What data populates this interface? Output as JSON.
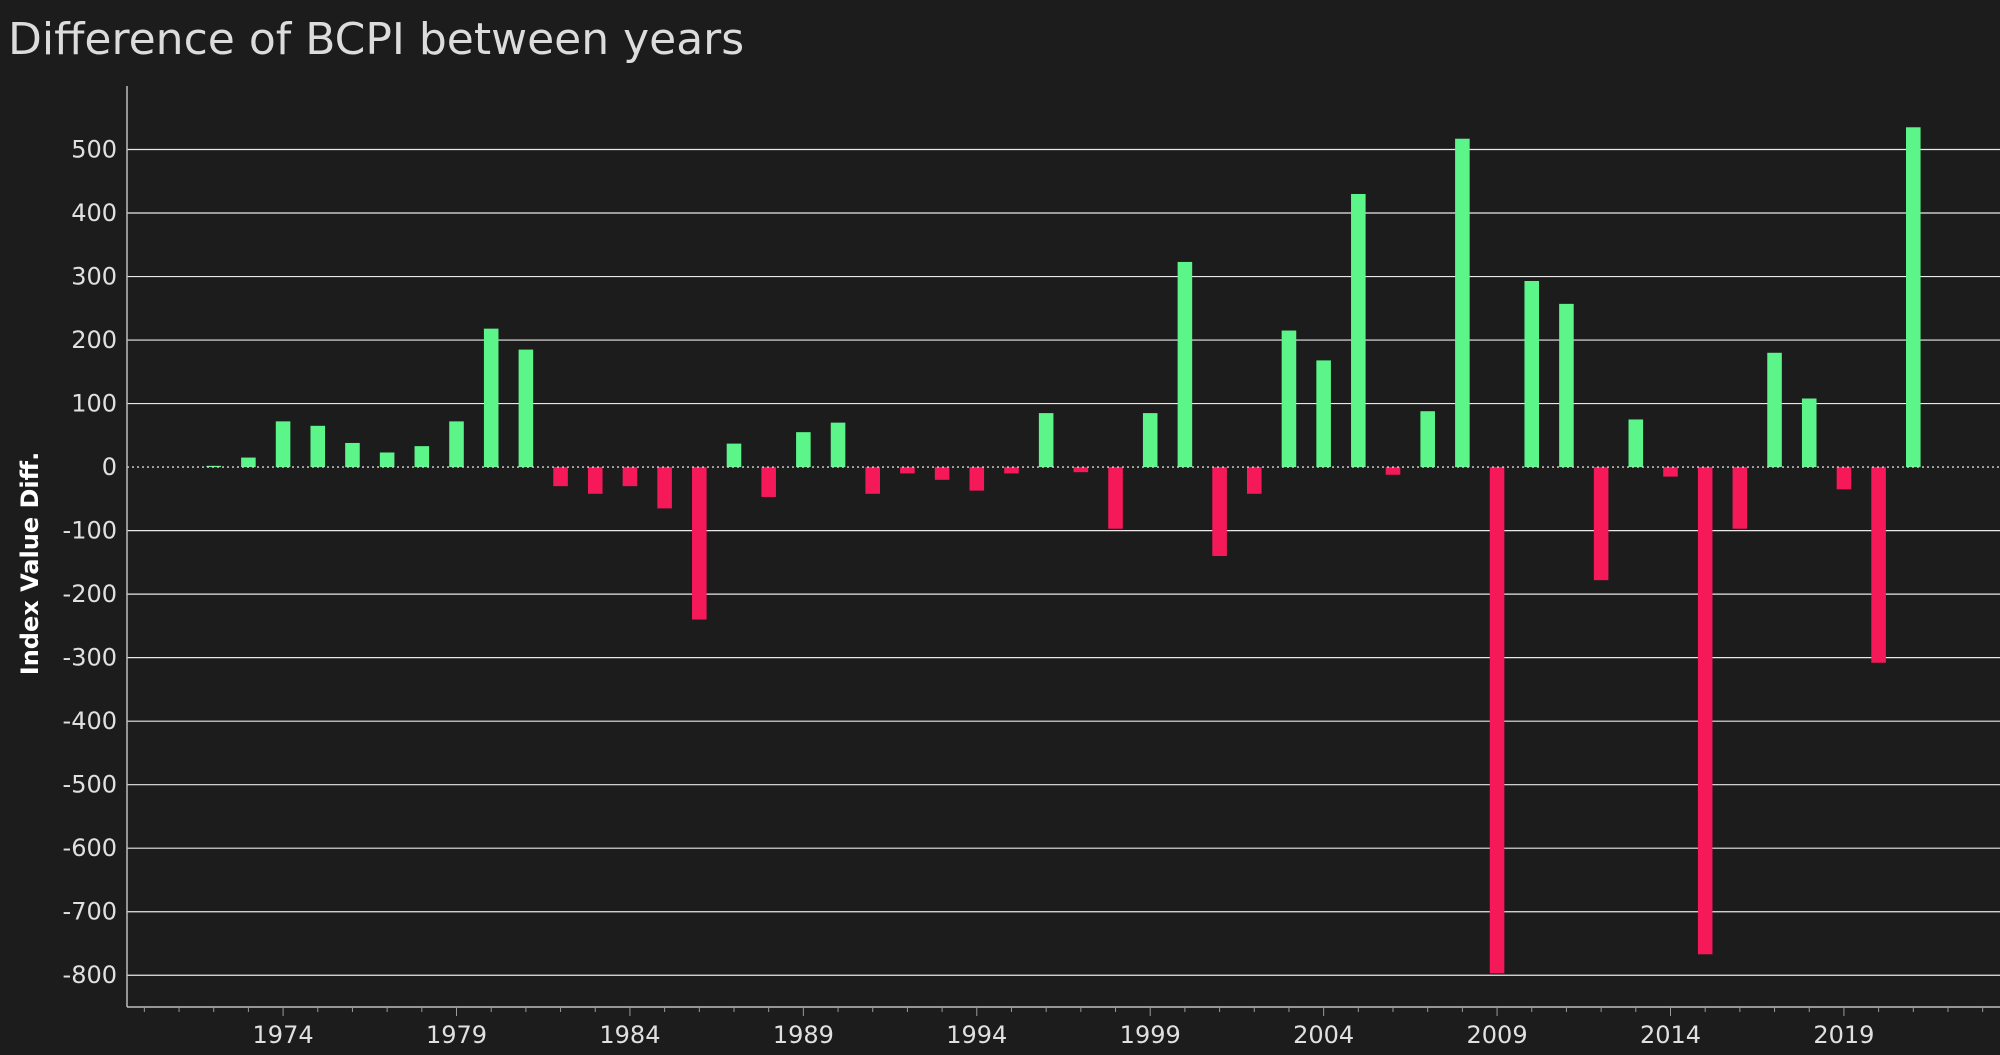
{
  "chart_data": {
    "type": "bar",
    "title": "Difference of BCPI between years",
    "xlabel": "",
    "ylabel": "Index Value Diff.",
    "ylim": [
      -850,
      600
    ],
    "yticks": [
      500,
      400,
      300,
      200,
      100,
      0,
      -100,
      -200,
      -300,
      -400,
      -500,
      -600,
      -700,
      -800
    ],
    "xlim": [
      1969.5,
      2023.5
    ],
    "xticks": [
      1974,
      1979,
      1984,
      1989,
      1994,
      1999,
      2004,
      2009,
      2014,
      2019
    ],
    "grid": true,
    "legend": "none",
    "colors": {
      "positive": "#5cf58a",
      "negative": "#f5195a"
    },
    "x": [
      1972,
      1973,
      1974,
      1975,
      1976,
      1977,
      1978,
      1979,
      1980,
      1981,
      1982,
      1983,
      1984,
      1985,
      1986,
      1987,
      1988,
      1989,
      1990,
      1991,
      1992,
      1993,
      1994,
      1995,
      1996,
      1997,
      1998,
      1999,
      2000,
      2001,
      2002,
      2003,
      2004,
      2005,
      2006,
      2007,
      2008,
      2009,
      2010,
      2011,
      2012,
      2013,
      2014,
      2015,
      2016,
      2017,
      2018,
      2019,
      2020,
      2021
    ],
    "values": [
      2,
      15,
      72,
      65,
      38,
      23,
      33,
      72,
      218,
      185,
      -30,
      -42,
      -30,
      -65,
      -240,
      37,
      -47,
      55,
      70,
      -42,
      -10,
      -20,
      -37,
      -10,
      85,
      -8,
      -97,
      85,
      323,
      -140,
      -42,
      215,
      168,
      430,
      -12,
      88,
      517,
      -797,
      293,
      257,
      -178,
      75,
      -15,
      -767,
      -97,
      180,
      108,
      -35,
      -308,
      535
    ]
  }
}
